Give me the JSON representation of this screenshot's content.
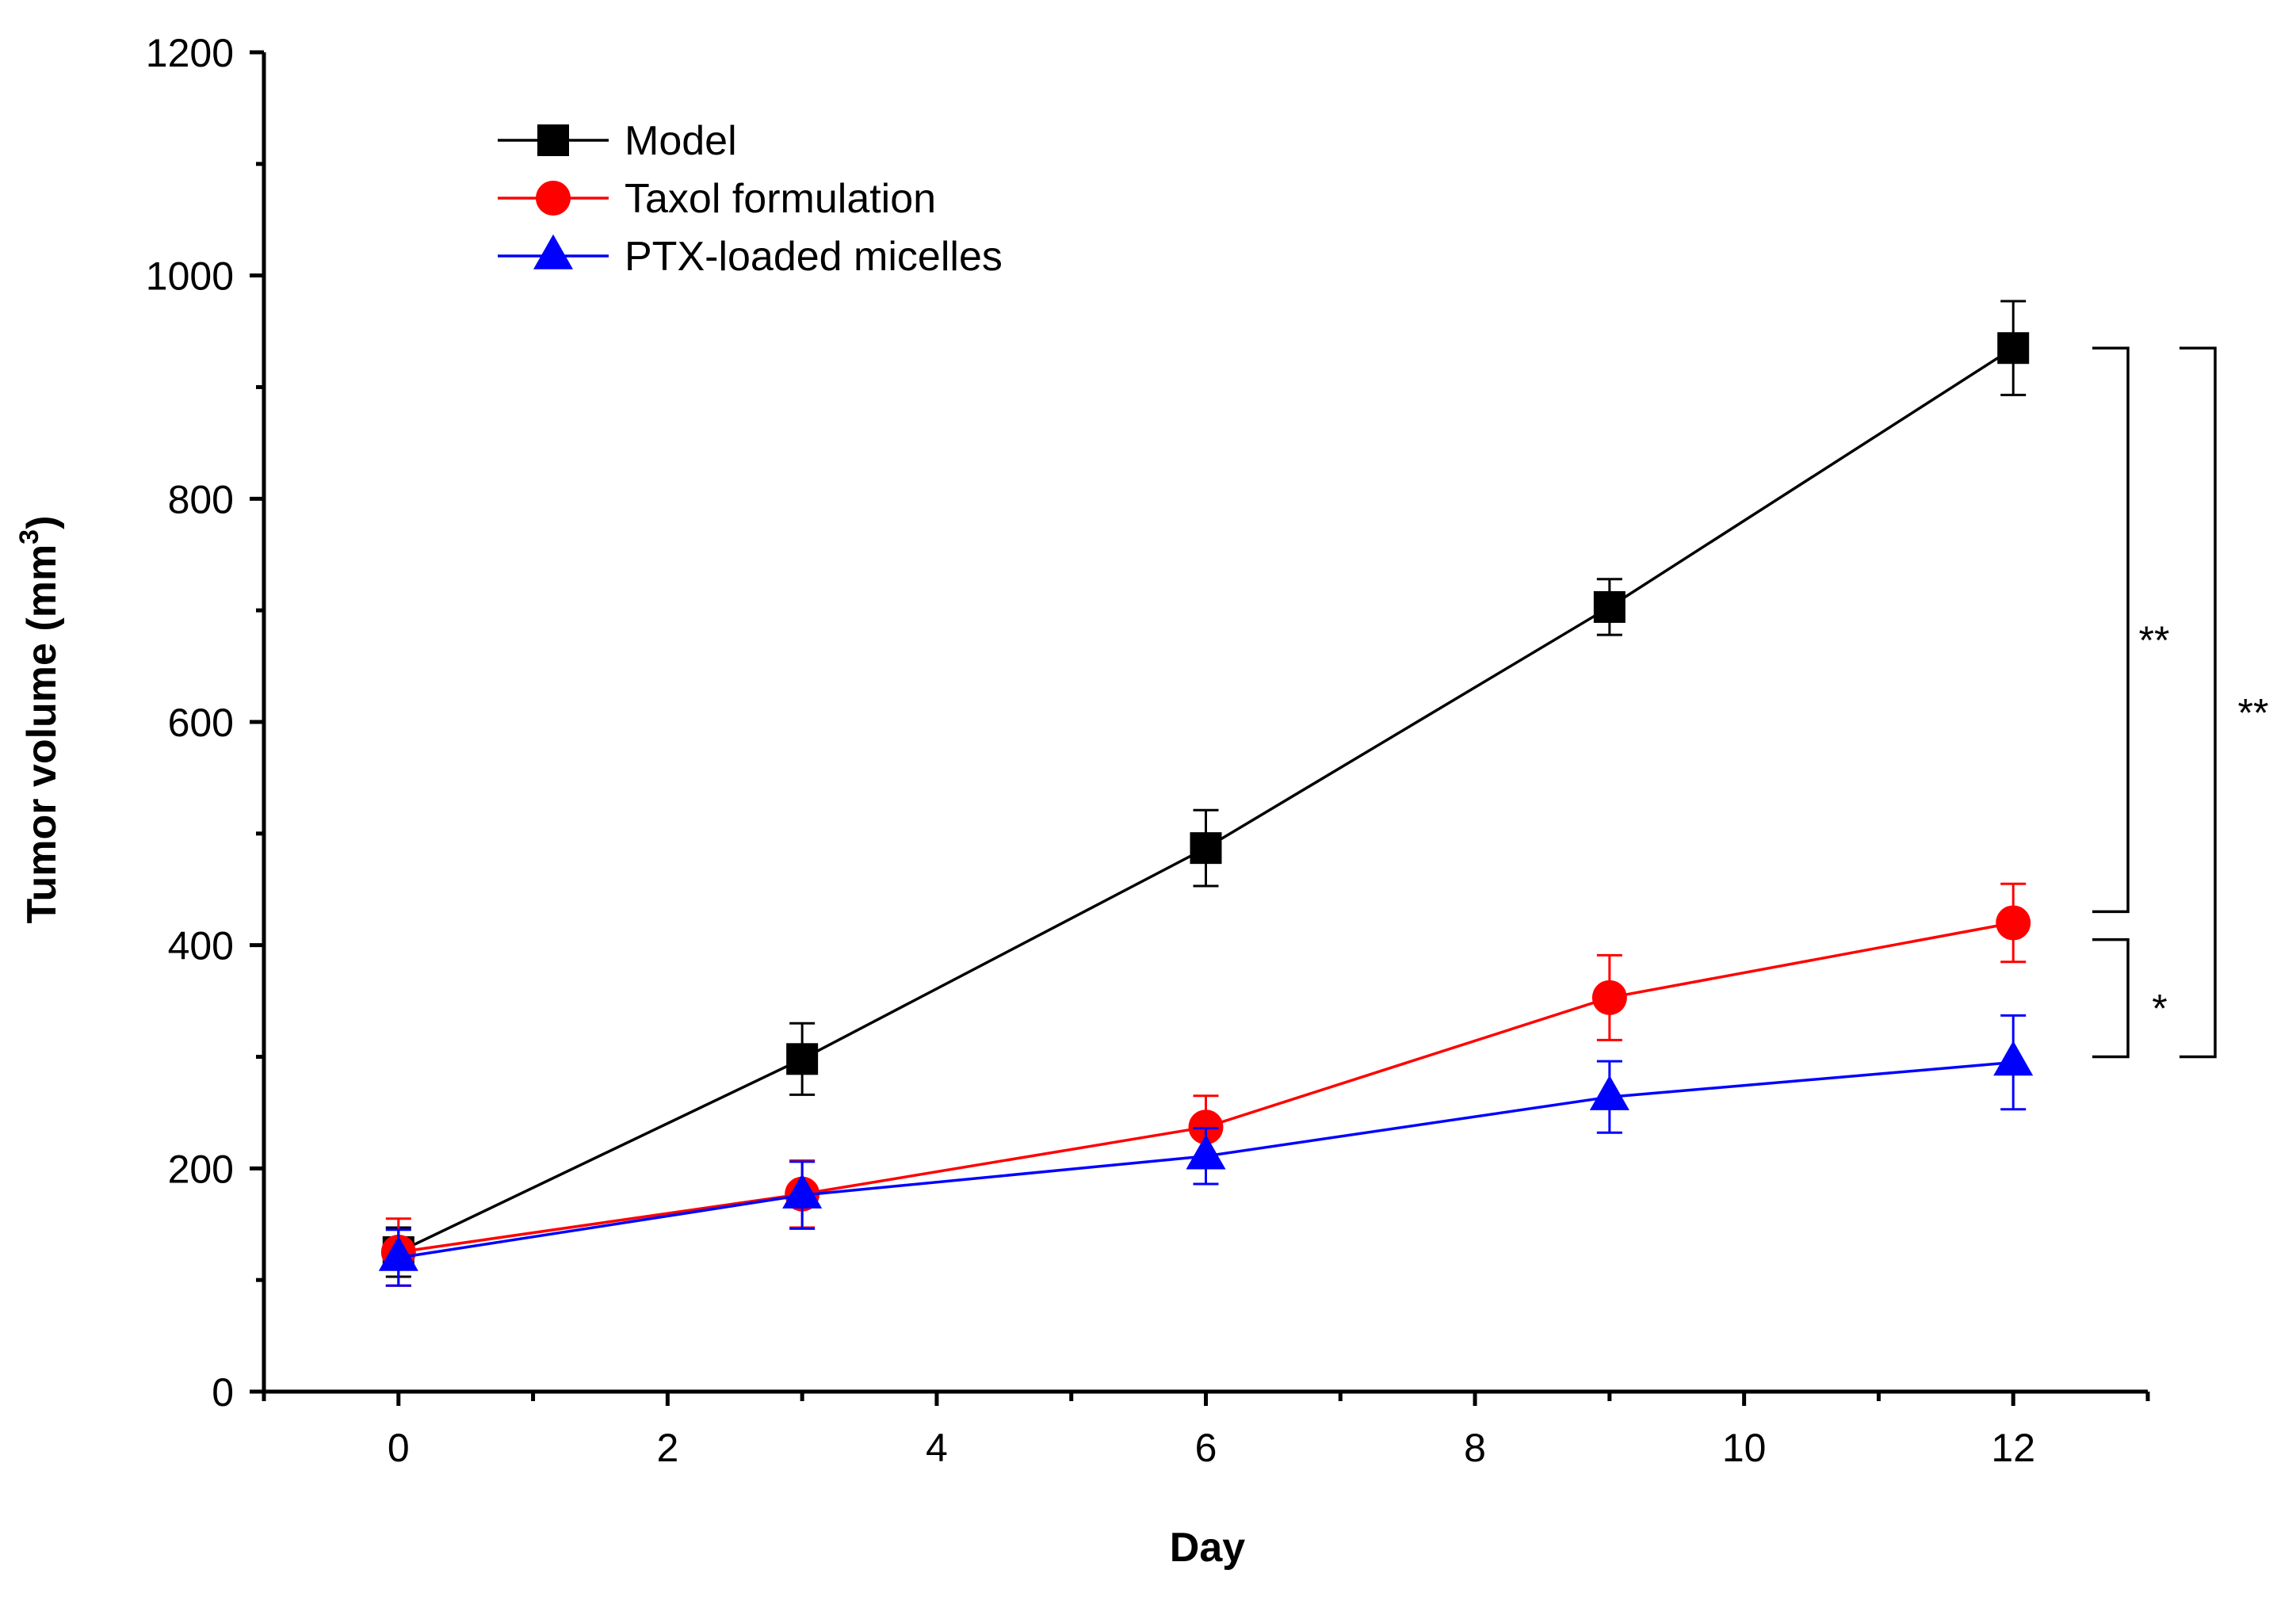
{
  "chart_data": {
    "type": "line",
    "title": "",
    "xlabel": "Day",
    "ylabel": "Tumor volume (mm",
    "ylabel_superscript": "3",
    "ylabel_suffix": ")",
    "xlim": [
      -1,
      13
    ],
    "ylim": [
      0,
      1200
    ],
    "x_major_ticks": [
      0,
      2,
      4,
      6,
      8,
      10,
      12
    ],
    "x_tick_labels": [
      "0",
      "2",
      "4",
      "6",
      "8",
      "10",
      "12"
    ],
    "x_minor_ticks": [
      -1,
      1,
      3,
      5,
      7,
      9,
      11,
      13
    ],
    "y_major_ticks": [
      0,
      200,
      400,
      600,
      800,
      1000,
      1200
    ],
    "y_tick_labels": [
      "0",
      "200",
      "400",
      "600",
      "800",
      "1000",
      "1200"
    ],
    "y_minor_ticks": [
      100,
      300,
      500,
      700,
      900,
      1100
    ],
    "grid": false,
    "legend_position": "top-left",
    "x": [
      0,
      3,
      6,
      9,
      12
    ],
    "series": [
      {
        "name": "Model",
        "color": "#000000",
        "marker": "square",
        "values": [
          125,
          298,
          487,
          703,
          935
        ],
        "errors": [
          22,
          32,
          34,
          25,
          42
        ]
      },
      {
        "name": "Taxol formulation",
        "color": "#ff0000",
        "marker": "circle",
        "values": [
          125,
          177,
          237,
          353,
          420
        ],
        "errors": [
          30,
          30,
          28,
          38,
          35
        ]
      },
      {
        "name": "PTX-loaded micelles",
        "color": "#0000ff",
        "marker": "triangle",
        "values": [
          120,
          176,
          211,
          264,
          295
        ],
        "errors": [
          25,
          30,
          25,
          32,
          42
        ]
      }
    ],
    "annotations": [
      {
        "label": "**",
        "from_value": 935,
        "to_value": 430,
        "level": 1
      },
      {
        "label": "*",
        "from_value": 405,
        "to_value": 300,
        "level": 1
      },
      {
        "label": "**",
        "from_value": 935,
        "to_value": 300,
        "level": 2
      }
    ]
  }
}
